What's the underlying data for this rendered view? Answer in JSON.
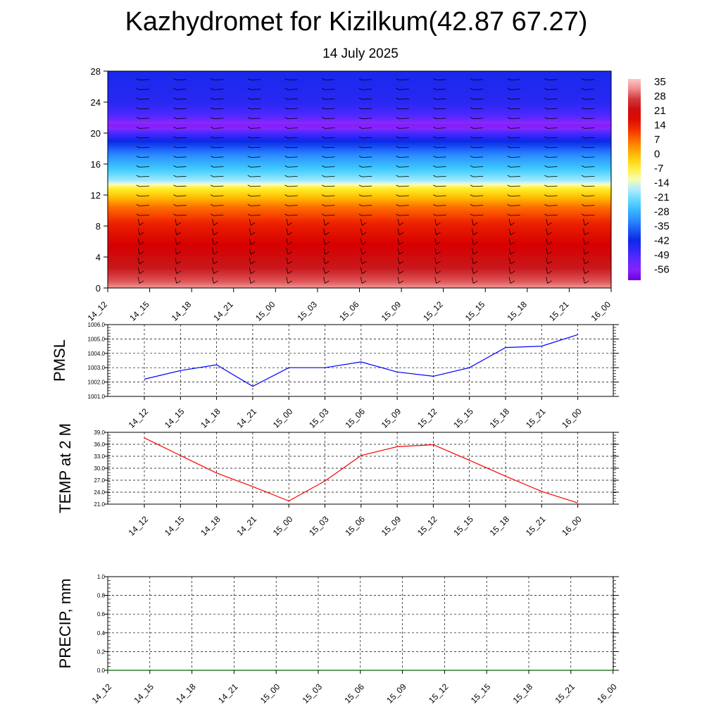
{
  "title": "Kazhydromet for Kizilkum(42.87 67.27)",
  "subtitle": "14 July 2025",
  "time_labels": [
    "14_12",
    "14_15",
    "14_18",
    "14_21",
    "15_00",
    "15_03",
    "15_06",
    "15_09",
    "15_12",
    "15_15",
    "15_18",
    "15_21",
    "16_00"
  ],
  "colors": {
    "pmsl_line": "#0000ff",
    "temp_line": "#ff0000",
    "precip_line": "#006400",
    "wind_barb": "#000000"
  },
  "chart_data": [
    {
      "type": "heatmap",
      "title": "",
      "xlabel": "",
      "ylabel": "",
      "x": [
        "14_12",
        "14_15",
        "14_18",
        "14_21",
        "15_00",
        "15_03",
        "15_06",
        "15_09",
        "15_12",
        "15_15",
        "15_18",
        "15_21",
        "16_00"
      ],
      "ylim": [
        0,
        28
      ],
      "yticks": [
        0,
        4,
        8,
        12,
        16,
        20,
        24,
        28
      ],
      "temperature_by_height": [
        {
          "height": 0,
          "value": 34
        },
        {
          "height": 1,
          "value": 30
        },
        {
          "height": 3,
          "value": 25
        },
        {
          "height": 5,
          "value": 21
        },
        {
          "height": 8,
          "value": 16
        },
        {
          "height": 10.5,
          "value": 8
        },
        {
          "height": 13,
          "value": -6
        },
        {
          "height": 13.8,
          "value": -16
        },
        {
          "height": 15,
          "value": -22
        },
        {
          "height": 17,
          "value": -30
        },
        {
          "height": 19,
          "value": -40
        },
        {
          "height": 21,
          "value": -56
        },
        {
          "height": 22,
          "value": -50
        },
        {
          "height": 24,
          "value": -44
        },
        {
          "height": 28,
          "value": -42
        }
      ],
      "colorbar": {
        "labels": [
          "35",
          "28",
          "21",
          "14",
          "7",
          "0",
          "-7",
          "-14",
          "-21",
          "-28",
          "-35",
          "-42",
          "-49",
          "-56"
        ]
      },
      "wind_barbs": "shown"
    },
    {
      "type": "line",
      "ylabel": "PMSL",
      "x": [
        "14_12",
        "14_15",
        "14_18",
        "14_21",
        "15_00",
        "15_03",
        "15_06",
        "15_09",
        "15_12",
        "15_15",
        "15_18",
        "15_21",
        "16_00"
      ],
      "series": [
        {
          "values": [
            1002.2,
            1002.8,
            1003.2,
            1001.7,
            1003.0,
            1003.0,
            1003.4,
            1002.7,
            1002.4,
            1003.0,
            1004.4,
            1004.5,
            1005.3
          ]
        }
      ],
      "ylim": [
        1001.0,
        1006.0
      ],
      "yticks": [
        "1001.0",
        "1002.0",
        "1003.0",
        "1004.0",
        "1005.0",
        "1006.0"
      ],
      "grid": true
    },
    {
      "type": "line",
      "ylabel": "TEMP at 2 M",
      "x": [
        "14_12",
        "14_15",
        "14_18",
        "14_21",
        "15_00",
        "15_03",
        "15_06",
        "15_09",
        "15_12",
        "15_15",
        "15_18",
        "15_21",
        "16_00"
      ],
      "series": [
        {
          "values": [
            37.6,
            33.2,
            28.8,
            25.4,
            21.8,
            26.8,
            33.2,
            35.4,
            35.9,
            32.0,
            28.0,
            24.2,
            21.3
          ]
        }
      ],
      "ylim": [
        21.0,
        39.0
      ],
      "yticks": [
        "21.0",
        "24.0",
        "27.0",
        "30.0",
        "33.0",
        "36.0",
        "39.0"
      ],
      "grid": true
    },
    {
      "type": "line",
      "ylabel": "PRECIP, mm",
      "x": [
        "14_12",
        "14_15",
        "14_18",
        "14_21",
        "15_00",
        "15_03",
        "15_06",
        "15_09",
        "15_12",
        "15_15",
        "15_18",
        "15_21",
        "16_00"
      ],
      "series": [
        {
          "values": [
            0,
            0,
            0,
            0,
            0,
            0,
            0,
            0,
            0,
            0,
            0,
            0,
            0
          ]
        }
      ],
      "ylim": [
        0.0,
        1.0
      ],
      "yticks": [
        "0.0",
        "0.2",
        "0.4",
        "0.6",
        "0.8",
        "1.0"
      ],
      "grid": true
    }
  ]
}
